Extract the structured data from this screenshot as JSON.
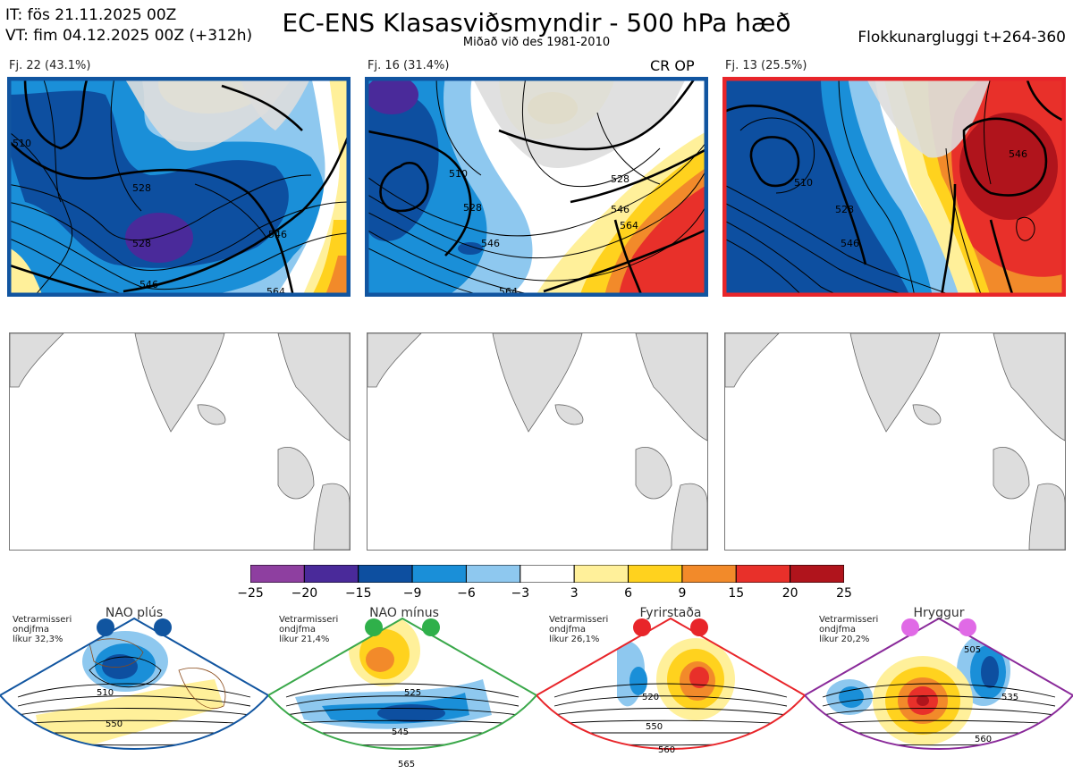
{
  "header": {
    "it": "IT: fös 21.11.2025 00Z",
    "vt": "VT: fim 04.12.2025 00Z  (+312h)",
    "title": "EC-ENS Klasasviðsmyndir - 500 hPa hæð",
    "subtitle": "Miðað við des 1981-2010",
    "window": "Flokkunargluggi t+264-360"
  },
  "clusters": [
    {
      "label": "Fj. 22 (43.1%)",
      "frame_color": "#1155a0",
      "tag": "",
      "contours": [
        "510",
        "528",
        "546",
        "564",
        "528",
        "546"
      ]
    },
    {
      "label": "Fj. 16 (31.4%)",
      "frame_color": "#1155a0",
      "tag": "CR OP",
      "contours": [
        "510",
        "528",
        "546",
        "564",
        "528",
        "546",
        "564"
      ]
    },
    {
      "label": "Fj. 13 (25.5%)",
      "frame_color": "#e8252a",
      "tag": "",
      "contours": [
        "510",
        "528",
        "546",
        "546"
      ]
    }
  ],
  "colorbar": {
    "ticks": [
      "−25",
      "−20",
      "−15",
      "−9",
      "−6",
      "−3",
      "3",
      "6",
      "9",
      "15",
      "20",
      "25"
    ],
    "colors": [
      "#8e3fa0",
      "#4a2a9a",
      "#0d4fa0",
      "#1a8fd8",
      "#8ec8ef",
      "#ffffff",
      "#fff09a",
      "#ffd21e",
      "#f28a2a",
      "#e8302a",
      "#b0141c"
    ]
  },
  "regimes": [
    {
      "name": "NAO plús",
      "note": "Vetrarmisseri\nondjfma\nlíkur 32,3%",
      "color": "#1155a0",
      "dot_color": "#1155a0",
      "contours": [
        "510",
        "550"
      ]
    },
    {
      "name": "NAO mínus",
      "note": "Vetrarmisseri\nondjfma\nlíkur 21,4%",
      "color": "#3aa84a",
      "dot_color": "#2fb04a",
      "contours": [
        "525",
        "545",
        "565"
      ]
    },
    {
      "name": "Fyrirstaða",
      "note": "Vetrarmisseri\nondjfma\nlíkur 26,1%",
      "color": "#e8252a",
      "dot_color": "#e8252a",
      "contours": [
        "520",
        "550",
        "560"
      ]
    },
    {
      "name": "Hryggur",
      "note": "Vetrarmisseri\nondjfma\nlíkur 20,2%",
      "color": "#8a2a9a",
      "dot_color": "#e06ae6",
      "contours": [
        "505",
        "535",
        "560"
      ]
    }
  ]
}
